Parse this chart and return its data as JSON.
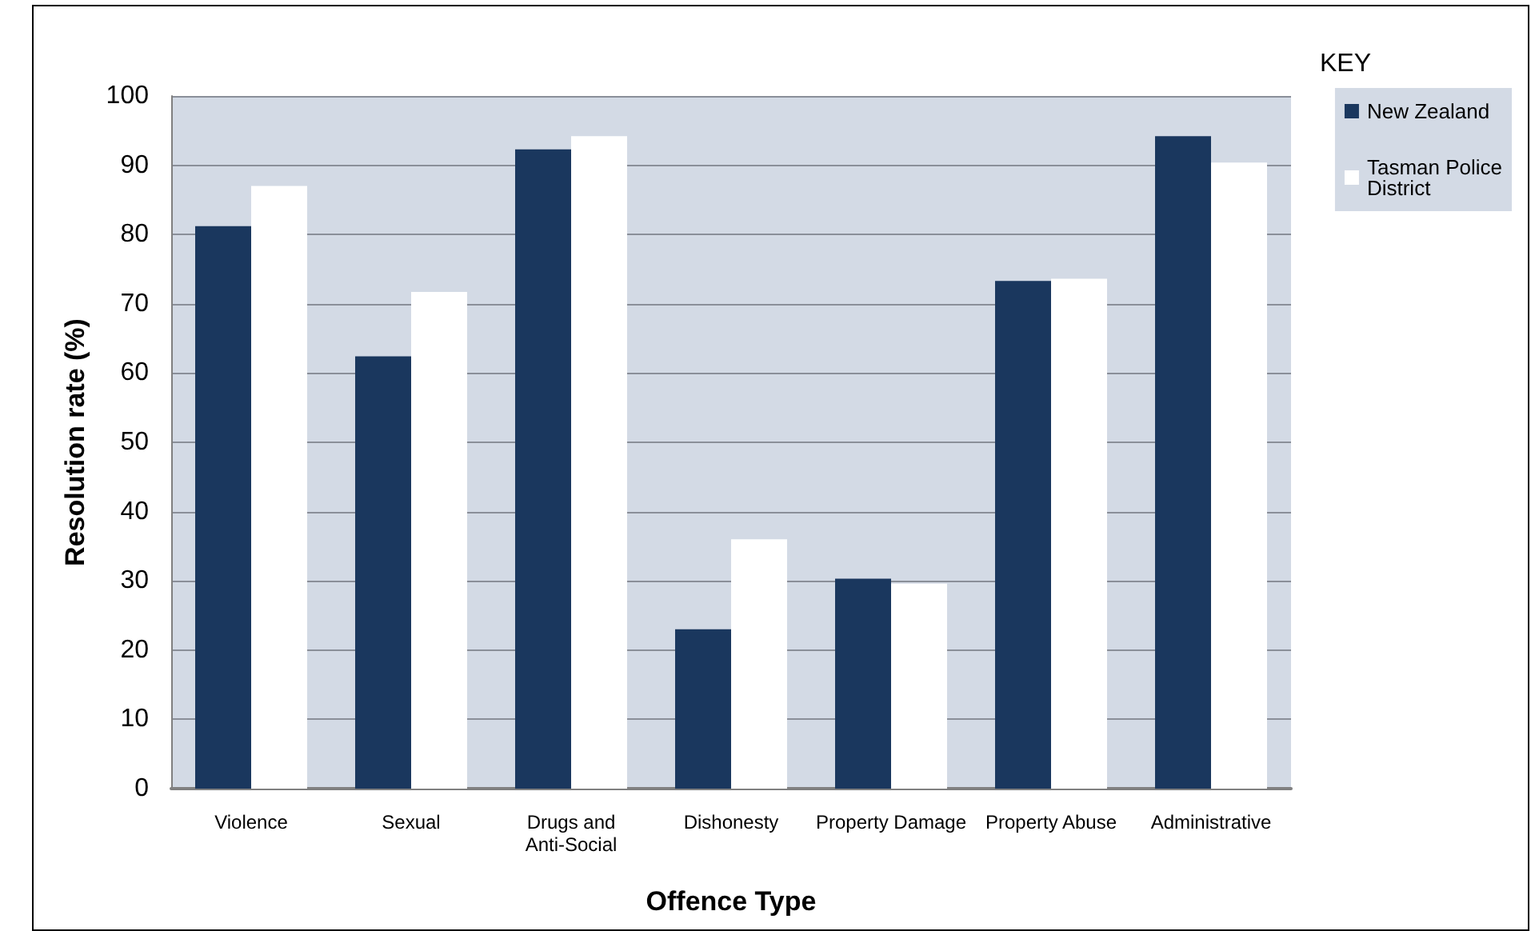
{
  "chart_data": {
    "type": "bar",
    "xlabel": "Offence Type",
    "ylabel": "Resolution rate (%)",
    "legend_title": "KEY",
    "categories": [
      "Violence",
      "Sexual",
      "Drugs and Anti-Social",
      "Dishonesty",
      "Property Damage",
      "Property Abuse",
      "Administrative"
    ],
    "series": [
      {
        "name": "New Zealand",
        "color": "#1a375e",
        "values": [
          81.2,
          62.4,
          92.3,
          23.0,
          30.3,
          73.3,
          94.2
        ]
      },
      {
        "name": "Tasman Police District",
        "color": "#ffffff",
        "values": [
          87.0,
          71.7,
          94.2,
          36.0,
          29.6,
          73.6,
          90.4
        ]
      }
    ],
    "ylim": [
      0,
      100
    ],
    "yticks": [
      0,
      10,
      20,
      30,
      40,
      50,
      60,
      70,
      80,
      90,
      100
    ],
    "grid": "y",
    "legend": "right"
  }
}
